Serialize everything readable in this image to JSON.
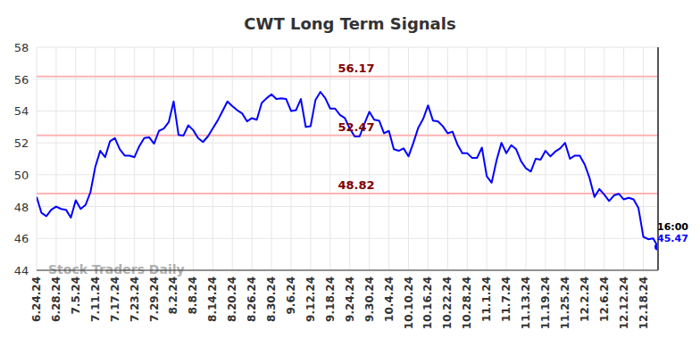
{
  "chart_data": {
    "type": "line",
    "title": "CWT Long Term Signals",
    "categories": [
      "6.24.24",
      null,
      null,
      null,
      "6.28.24",
      null,
      null,
      null,
      "7.5.24",
      null,
      null,
      null,
      "7.11.24",
      null,
      null,
      null,
      "7.17.24",
      null,
      null,
      null,
      "7.23.24",
      null,
      null,
      null,
      "7.29.24",
      null,
      null,
      null,
      "8.2.24",
      null,
      null,
      null,
      "8.8.24",
      null,
      null,
      null,
      "8.14.24",
      null,
      null,
      null,
      "8.20.24",
      null,
      null,
      null,
      "8.26.24",
      null,
      null,
      null,
      "8.30.24",
      null,
      null,
      null,
      "9.6.24",
      null,
      null,
      null,
      "9.12.24",
      null,
      null,
      null,
      "9.18.24",
      null,
      null,
      null,
      "9.24.24",
      null,
      null,
      null,
      "9.30.24",
      null,
      null,
      null,
      "10.4.24",
      null,
      null,
      null,
      "10.10.24",
      null,
      null,
      null,
      "10.16.24",
      null,
      null,
      null,
      "10.22.24",
      null,
      null,
      null,
      "10.28.24",
      null,
      null,
      null,
      "11.1.24",
      null,
      null,
      null,
      "11.7.24",
      null,
      null,
      null,
      "11.13.24",
      null,
      null,
      null,
      "11.19.24",
      null,
      null,
      null,
      "11.25.24",
      null,
      null,
      null,
      "12.2.24",
      null,
      null,
      null,
      "12.6.24",
      null,
      null,
      null,
      "12.12.24",
      null,
      null,
      null,
      "12.18.24",
      null,
      null,
      null
    ],
    "series": [
      {
        "color": "#0000ff",
        "values": [
          48.6,
          47.6,
          47.4,
          47.8,
          48.0,
          47.85,
          47.8,
          47.3,
          48.4,
          47.85,
          48.1,
          48.9,
          50.5,
          51.5,
          51.1,
          52.1,
          52.3,
          51.6,
          51.2,
          51.2,
          51.1,
          51.8,
          52.3,
          52.35,
          51.95,
          52.75,
          52.9,
          53.3,
          54.6,
          52.5,
          52.45,
          53.1,
          52.8,
          52.3,
          52.05,
          52.4,
          52.9,
          53.4,
          54.0,
          54.6,
          54.3,
          54.05,
          53.85,
          53.35,
          53.55,
          53.45,
          54.5,
          54.8,
          55.05,
          54.75,
          54.8,
          54.75,
          54.0,
          54.05,
          54.75,
          53.0,
          53.05,
          54.7,
          55.2,
          54.8,
          54.15,
          54.15,
          53.75,
          53.55,
          52.9,
          52.4,
          52.4,
          53.2,
          53.95,
          53.45,
          53.4,
          52.6,
          52.75,
          51.6,
          51.5,
          51.65,
          51.15,
          52.0,
          52.95,
          53.5,
          54.35,
          53.4,
          53.35,
          53.05,
          52.6,
          52.7,
          51.9,
          51.35,
          51.35,
          51.05,
          51.05,
          51.7,
          49.9,
          49.5,
          50.9,
          52.0,
          51.35,
          51.85,
          51.6,
          50.85,
          50.4,
          50.2,
          51.0,
          50.95,
          51.5,
          51.15,
          51.45,
          51.65,
          52.0,
          51.0,
          51.2,
          51.2,
          50.65,
          49.8,
          48.6,
          49.1,
          48.75,
          48.35,
          48.7,
          48.8,
          48.45,
          48.55,
          48.45,
          47.9,
          46.1,
          45.95,
          46.0,
          45.47
        ]
      }
    ],
    "ylim": [
      44,
      58
    ],
    "yticks": [
      44,
      46,
      48,
      50,
      52,
      54,
      56,
      58
    ],
    "grid": true,
    "reference_lines": [
      56.17,
      52.47,
      48.82
    ],
    "end_label": "16:00",
    "watermark": "Stock Traders Daily"
  }
}
